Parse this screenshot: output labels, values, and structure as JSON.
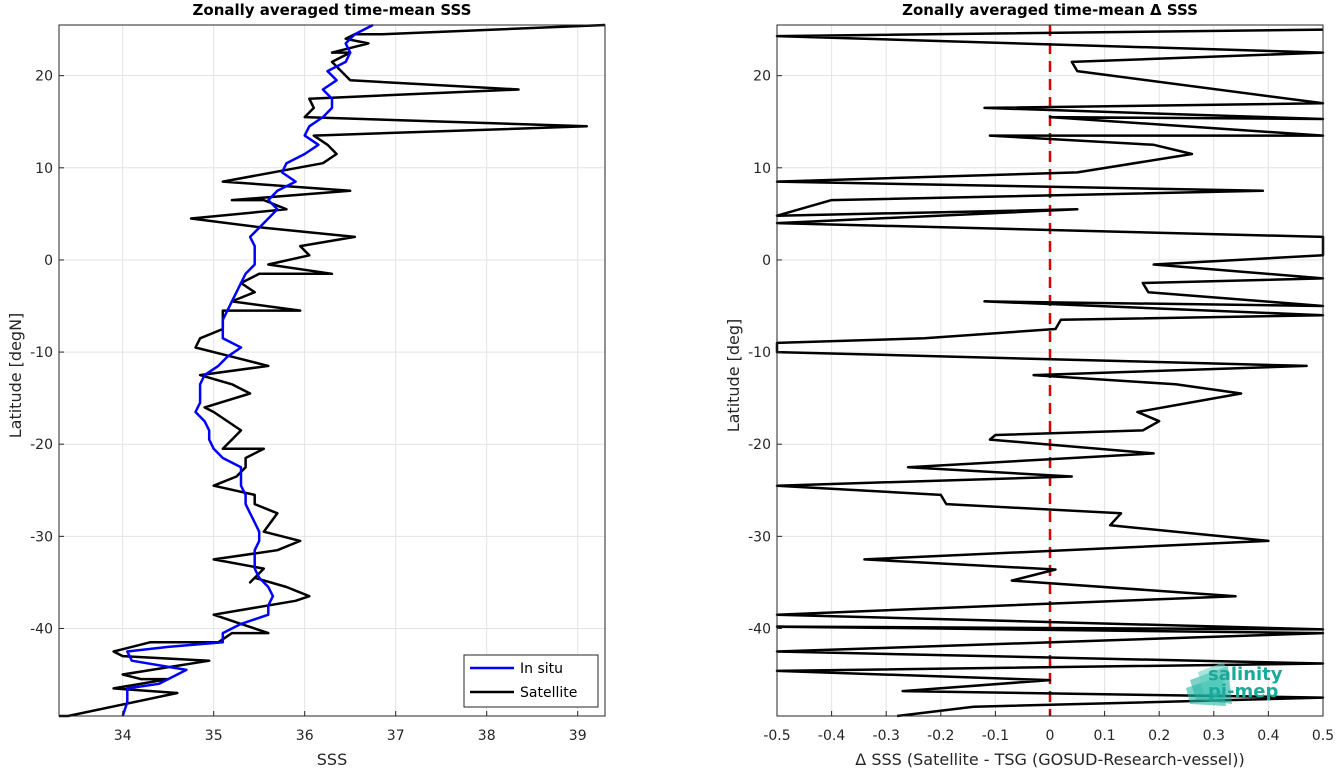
{
  "chart_data": [
    {
      "type": "line",
      "title": "Zonally averaged time-mean SSS",
      "xlabel": "SSS",
      "ylabel": "Latitude [degN]",
      "xlim": [
        33.3,
        39.3
      ],
      "ylim": [
        -49.5,
        25.5
      ],
      "xticks": [
        34,
        35,
        36,
        37,
        38,
        39
      ],
      "yticks": [
        -40,
        -30,
        -20,
        -10,
        0,
        10,
        20
      ],
      "grid": true,
      "legend": "bottom-right",
      "series": [
        {
          "name": "In situ",
          "color": "#0000ff",
          "points": [
            [
              34.0,
              -49.5
            ],
            [
              34.05,
              -48
            ],
            [
              34.05,
              -46.5
            ],
            [
              34.4,
              -46
            ],
            [
              34.7,
              -44.5
            ],
            [
              34.1,
              -43.5
            ],
            [
              34.05,
              -42.5
            ],
            [
              34.5,
              -42
            ],
            [
              35.1,
              -41.5
            ],
            [
              35.1,
              -40.5
            ],
            [
              35.3,
              -39.5
            ],
            [
              35.6,
              -38.5
            ],
            [
              35.6,
              -37.5
            ],
            [
              35.65,
              -36.5
            ],
            [
              35.6,
              -35.5
            ],
            [
              35.5,
              -34.5
            ],
            [
              35.45,
              -33.5
            ],
            [
              35.45,
              -32.5
            ],
            [
              35.45,
              -31.5
            ],
            [
              35.5,
              -30.5
            ],
            [
              35.5,
              -29.5
            ],
            [
              35.45,
              -28.5
            ],
            [
              35.4,
              -27.5
            ],
            [
              35.35,
              -26.5
            ],
            [
              35.35,
              -25.5
            ],
            [
              35.3,
              -24.5
            ],
            [
              35.3,
              -23.5
            ],
            [
              35.3,
              -22.5
            ],
            [
              35.1,
              -21.5
            ],
            [
              35.0,
              -20.5
            ],
            [
              34.95,
              -19.5
            ],
            [
              34.95,
              -18.5
            ],
            [
              34.9,
              -17.5
            ],
            [
              34.8,
              -16.5
            ],
            [
              34.85,
              -15.5
            ],
            [
              34.85,
              -14.5
            ],
            [
              34.85,
              -13.5
            ],
            [
              34.9,
              -12.5
            ],
            [
              35.05,
              -11.5
            ],
            [
              35.15,
              -10.5
            ],
            [
              35.3,
              -9.5
            ],
            [
              35.1,
              -8.5
            ],
            [
              35.1,
              -7.5
            ],
            [
              35.1,
              -6.5
            ],
            [
              35.15,
              -5.5
            ],
            [
              35.2,
              -4.5
            ],
            [
              35.25,
              -3.5
            ],
            [
              35.3,
              -2.5
            ],
            [
              35.35,
              -1.5
            ],
            [
              35.45,
              -0.5
            ],
            [
              35.45,
              0.5
            ],
            [
              35.45,
              1.5
            ],
            [
              35.4,
              2.5
            ],
            [
              35.5,
              3.5
            ],
            [
              35.6,
              4.5
            ],
            [
              35.7,
              5.5
            ],
            [
              35.6,
              6.5
            ],
            [
              35.7,
              7.5
            ],
            [
              35.9,
              8.5
            ],
            [
              35.75,
              9.5
            ],
            [
              35.8,
              10.5
            ],
            [
              36.0,
              11.5
            ],
            [
              36.15,
              12.5
            ],
            [
              36.0,
              13.5
            ],
            [
              36.05,
              14.5
            ],
            [
              36.2,
              15.5
            ],
            [
              36.3,
              16.5
            ],
            [
              36.3,
              17.5
            ],
            [
              36.2,
              18.5
            ],
            [
              36.35,
              19.5
            ],
            [
              36.25,
              20.5
            ],
            [
              36.45,
              21.5
            ],
            [
              36.5,
              22.5
            ],
            [
              36.45,
              23.5
            ],
            [
              36.55,
              24.5
            ],
            [
              36.75,
              25.5
            ]
          ]
        },
        {
          "name": "Satellite",
          "color": "#000000",
          "points": [
            [
              33.3,
              -49.5
            ],
            [
              33.4,
              -49.5
            ],
            [
              34.6,
              -47
            ],
            [
              33.9,
              -46.5
            ],
            [
              34.5,
              -45.5
            ],
            [
              34.2,
              -45.5
            ],
            [
              34.0,
              -45
            ],
            [
              34.95,
              -43.5
            ],
            [
              34.0,
              -43
            ],
            [
              33.9,
              -42.5
            ],
            [
              34.3,
              -41.5
            ],
            [
              35.05,
              -41.5
            ],
            [
              35.2,
              -40.5
            ],
            [
              35.6,
              -40.5
            ],
            [
              35.3,
              -39.5
            ],
            [
              35.0,
              -38.5
            ],
            [
              35.9,
              -37
            ],
            [
              36.05,
              -36.5
            ],
            [
              35.8,
              -35.5
            ],
            [
              35.45,
              -34.5
            ],
            [
              35.4,
              -35
            ],
            [
              35.55,
              -33.5
            ],
            [
              35.0,
              -32.5
            ],
            [
              35.7,
              -31.5
            ],
            [
              35.95,
              -30.5
            ],
            [
              35.55,
              -29.5
            ],
            [
              35.7,
              -27.5
            ],
            [
              35.45,
              -26.5
            ],
            [
              35.45,
              -25.5
            ],
            [
              35.0,
              -24.5
            ],
            [
              35.25,
              -23.5
            ],
            [
              35.35,
              -22.5
            ],
            [
              35.35,
              -21.5
            ],
            [
              35.55,
              -20.5
            ],
            [
              35.1,
              -20.5
            ],
            [
              35.2,
              -19.5
            ],
            [
              35.3,
              -18.5
            ],
            [
              35.0,
              -16.5
            ],
            [
              34.9,
              -16
            ],
            [
              35.4,
              -14.5
            ],
            [
              35.2,
              -13.5
            ],
            [
              34.85,
              -12.5
            ],
            [
              35.6,
              -11.5
            ],
            [
              35.2,
              -10.5
            ],
            [
              34.8,
              -9.5
            ],
            [
              34.85,
              -8.5
            ],
            [
              35.1,
              -7.5
            ],
            [
              35.1,
              -5.5
            ],
            [
              35.95,
              -5.5
            ],
            [
              35.2,
              -4.5
            ],
            [
              35.45,
              -3.5
            ],
            [
              35.3,
              -2.5
            ],
            [
              35.5,
              -1.5
            ],
            [
              36.3,
              -1.5
            ],
            [
              35.6,
              -0.5
            ],
            [
              36.05,
              0.5
            ],
            [
              35.95,
              1.5
            ],
            [
              36.55,
              2.5
            ],
            [
              35.55,
              3.5
            ],
            [
              34.75,
              4.5
            ],
            [
              35.8,
              5.5
            ],
            [
              35.55,
              6.5
            ],
            [
              35.2,
              6.5
            ],
            [
              36.5,
              7.5
            ],
            [
              35.1,
              8.5
            ],
            [
              36.2,
              10.5
            ],
            [
              36.35,
              11.5
            ],
            [
              36.25,
              12.5
            ],
            [
              36.1,
              13.5
            ],
            [
              39.1,
              14.5
            ],
            [
              36.0,
              15.5
            ],
            [
              36.1,
              16.5
            ],
            [
              36.05,
              17.5
            ],
            [
              38.35,
              18.5
            ],
            [
              36.5,
              19.5
            ],
            [
              36.3,
              21.5
            ],
            [
              36.5,
              22.5
            ],
            [
              36.3,
              22.5
            ],
            [
              36.7,
              23.5
            ],
            [
              36.45,
              24
            ],
            [
              36.55,
              24.5
            ],
            [
              36.85,
              24.5
            ],
            [
              39.3,
              25.5
            ]
          ]
        }
      ],
      "legend_entries": [
        "In situ",
        "Satellite"
      ]
    },
    {
      "type": "line",
      "title": "Zonally averaged time-mean Δ SSS",
      "xlabel": "Δ SSS (Satellite - TSG (GOSUD-Research-vessel))",
      "ylabel": "Latitude [deg]",
      "xlim": [
        -0.5,
        0.5
      ],
      "ylim": [
        -49.5,
        25.5
      ],
      "xticks": [
        -0.5,
        -0.4,
        -0.3,
        -0.2,
        -0.1,
        0,
        0.1,
        0.2,
        0.3,
        0.4,
        0.5
      ],
      "yticks": [
        -40,
        -30,
        -20,
        -10,
        0,
        10,
        20
      ],
      "grid": true,
      "zero_line_color": "#dd0000",
      "series": [
        {
          "name": "",
          "color": "#000000",
          "points": [
            [
              -0.28,
              -49.5
            ],
            [
              -0.14,
              -48.5
            ],
            [
              0.5,
              -47.5
            ],
            [
              -0.27,
              -46.8
            ],
            [
              0.0,
              -45.6
            ],
            [
              -0.5,
              -44.6
            ],
            [
              0.5,
              -43.8
            ],
            [
              -0.5,
              -42.5
            ],
            [
              0.5,
              -40.5
            ],
            [
              -0.5,
              -39.8
            ],
            [
              0.5,
              -40.1
            ],
            [
              -0.5,
              -38.5
            ],
            [
              0.34,
              -36.5
            ],
            [
              -0.07,
              -34.8
            ],
            [
              0.01,
              -33.6
            ],
            [
              -0.34,
              -32.5
            ],
            [
              0.4,
              -30.5
            ],
            [
              0.11,
              -28.8
            ],
            [
              0.13,
              -27.5
            ],
            [
              -0.19,
              -26.5
            ],
            [
              -0.2,
              -25.5
            ],
            [
              -0.5,
              -24.5
            ],
            [
              0.04,
              -23.5
            ],
            [
              -0.26,
              -22.5
            ],
            [
              0.19,
              -21
            ],
            [
              -0.11,
              -19.5
            ],
            [
              -0.1,
              -19
            ],
            [
              0.17,
              -18.5
            ],
            [
              0.2,
              -17.5
            ],
            [
              0.16,
              -16.5
            ],
            [
              0.35,
              -14.5
            ],
            [
              0.23,
              -13.5
            ],
            [
              -0.03,
              -12.5
            ],
            [
              0.47,
              -11.5
            ],
            [
              -0.5,
              -10
            ],
            [
              -0.5,
              -9
            ],
            [
              -0.23,
              -8.5
            ],
            [
              0.01,
              -7.5
            ],
            [
              0.02,
              -6.5
            ],
            [
              0.5,
              -6
            ],
            [
              -0.12,
              -4.5
            ],
            [
              0.5,
              -5
            ],
            [
              0.18,
              -3.5
            ],
            [
              0.17,
              -2.5
            ],
            [
              0.5,
              -2
            ],
            [
              0.19,
              -0.5
            ],
            [
              0.5,
              0.5
            ],
            [
              0.5,
              2.5
            ],
            [
              -0.5,
              4
            ],
            [
              0.05,
              5.5
            ],
            [
              -0.5,
              4.8
            ],
            [
              -0.4,
              6.5
            ],
            [
              0.39,
              7.5
            ],
            [
              -0.5,
              8.5
            ],
            [
              0.05,
              9.5
            ],
            [
              0.26,
              11.5
            ],
            [
              0.19,
              12.5
            ],
            [
              -0.11,
              13.5
            ],
            [
              0.5,
              13.5
            ],
            [
              0.0,
              15.5
            ],
            [
              0.5,
              15.3
            ],
            [
              -0.12,
              16.5
            ],
            [
              0.5,
              17
            ],
            [
              0.05,
              20.5
            ],
            [
              0.04,
              21.5
            ],
            [
              0.5,
              22.5
            ],
            [
              -0.5,
              24.3
            ],
            [
              0.5,
              25
            ]
          ]
        }
      ]
    }
  ],
  "logo": {
    "line1": "salinity",
    "line2": "pi-mep",
    "color": "#1aa99a"
  }
}
